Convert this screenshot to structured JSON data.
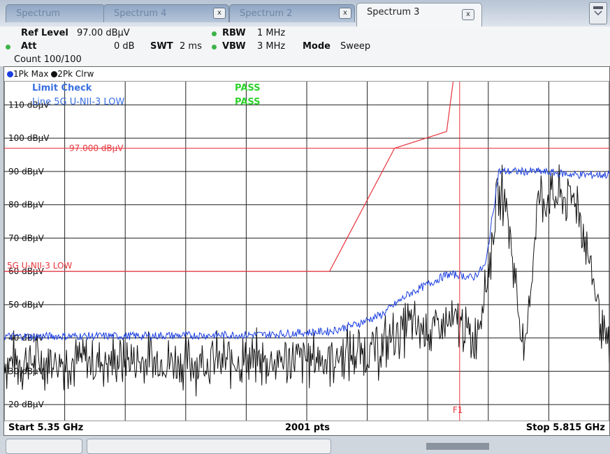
{
  "tabs": [
    {
      "label": "Spectrum"
    },
    {
      "label": "Spectrum 4"
    },
    {
      "label": "Spectrum 2"
    },
    {
      "label": "Spectrum 3"
    }
  ],
  "tab_close_glyph": "x",
  "preset_icon": "grid-icon",
  "info": {
    "ref_level_label": "Ref Level",
    "ref_level_value": "97.00 dBµV",
    "att_label": "Att",
    "att_value": "0 dB",
    "swt_label": "SWT",
    "swt_value": "2 ms",
    "rbw_label": "RBW",
    "rbw_value": "1 MHz",
    "vbw_label": "VBW",
    "vbw_value": "3 MHz",
    "mode_label": "Mode",
    "mode_value": "Sweep",
    "count": "Count 100/100"
  },
  "traces_header": {
    "trace1": "1Pk Max",
    "trace2": "2Pk Clrw"
  },
  "limit_check": {
    "title": "Limit Check",
    "line_label": "Line 5G U-NII-3 LOW",
    "result1": "PASS",
    "result2": "PASS"
  },
  "ref_line_label": "97.000 dBµV",
  "limit_line_label": "5G U-NII-3 LOW",
  "marker_label": "F1",
  "y_ticks": [
    "110 dBµV",
    "100 dBµV",
    "90 dBµV",
    "80 dBµV",
    "70 dBµV",
    "60 dBµV",
    "50 dBµV",
    "40 dBµV",
    "30 dBµV",
    "20 dBµV"
  ],
  "footer": {
    "start": "Start 5.35 GHz",
    "points": "2001 pts",
    "stop": "Stop 5.815 GHz"
  },
  "colors": {
    "trace1": "#1b3fe0",
    "trace2": "#111111",
    "limit": "#e8343c",
    "pass": "#2fd22f",
    "limit_check_text": "#3a6fe0"
  },
  "chart_data": {
    "type": "line",
    "x_range_ghz": [
      5.35,
      5.815
    ],
    "ylim": [
      15,
      117
    ],
    "y_unit": "dBµV",
    "reference_level": 97.0,
    "limit_line": {
      "name": "5G U-NII-3 LOW",
      "points": [
        [
          5.35,
          60
        ],
        [
          5.6,
          60
        ],
        [
          5.65,
          97
        ],
        [
          5.69,
          102
        ],
        [
          5.695,
          117
        ]
      ]
    },
    "marker_frequency_ghz": 5.7,
    "series": [
      {
        "name": "1Pk Max",
        "x": [
          5.35,
          5.45,
          5.55,
          5.6,
          5.62,
          5.64,
          5.66,
          5.68,
          5.69,
          5.7,
          5.71,
          5.72,
          5.73,
          5.76,
          5.79,
          5.815
        ],
        "y": [
          40.5,
          40.6,
          41,
          42,
          44,
          47,
          53,
          57,
          59,
          59,
          58,
          62,
          90,
          90,
          89,
          89
        ]
      },
      {
        "name": "2Pk Clrw",
        "x": [
          5.35,
          5.45,
          5.55,
          5.6,
          5.64,
          5.66,
          5.68,
          5.7,
          5.71,
          5.72,
          5.73,
          5.735,
          5.75,
          5.76,
          5.79,
          5.815
        ],
        "y": [
          33,
          33,
          33,
          34,
          37,
          44,
          42,
          45,
          38,
          55,
          83,
          83,
          33,
          82,
          82,
          33
        ]
      }
    ]
  }
}
